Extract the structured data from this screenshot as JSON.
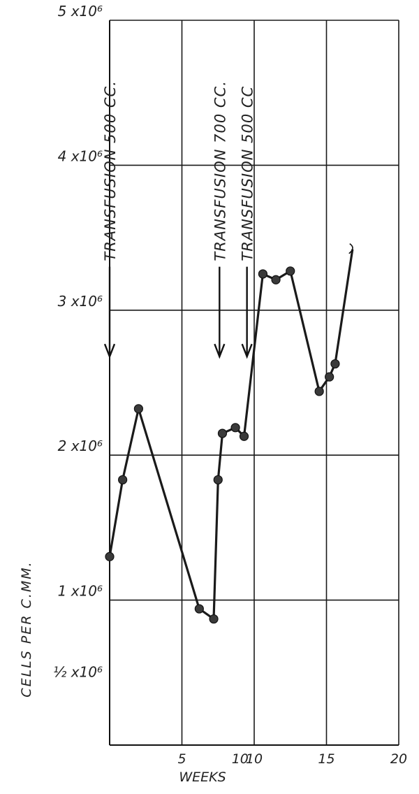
{
  "chart_data": {
    "type": "line",
    "xlabel": "WEEKS",
    "ylabel": "CELLS PER C.MM.",
    "xlim": [
      0,
      20
    ],
    "ylim": [
      0,
      5000000
    ],
    "grid": true,
    "x_ticks": [
      {
        "value": 5,
        "label": "5"
      },
      {
        "value": 10,
        "label": "10"
      },
      {
        "value": 15,
        "label": "15"
      },
      {
        "value": 20,
        "label": "20"
      }
    ],
    "x_label_extra": {
      "value": 9.7,
      "label": "10"
    },
    "y_ticks": [
      {
        "value": 500000,
        "label": "½ x10⁶"
      },
      {
        "value": 1000000,
        "label": "1 x10⁶"
      },
      {
        "value": 2000000,
        "label": "2 x10⁶"
      },
      {
        "value": 3000000,
        "label": "3 x10⁶"
      },
      {
        "value": 4000000,
        "label": "4 x10⁶"
      },
      {
        "value": 5000000,
        "label": "5 x10⁶"
      }
    ],
    "series": [
      {
        "points": [
          {
            "x": 0,
            "y": 1300000
          },
          {
            "x": 0.9,
            "y": 1830000
          },
          {
            "x": 2.0,
            "y": 2320000
          },
          {
            "x": 6.2,
            "y": 940000
          },
          {
            "x": 7.2,
            "y": 870000
          },
          {
            "x": 7.5,
            "y": 1830000
          },
          {
            "x": 7.8,
            "y": 2150000
          },
          {
            "x": 8.7,
            "y": 2190000
          },
          {
            "x": 9.3,
            "y": 2130000
          },
          {
            "x": 10.6,
            "y": 3250000
          },
          {
            "x": 11.5,
            "y": 3210000
          },
          {
            "x": 12.5,
            "y": 3270000
          },
          {
            "x": 14.5,
            "y": 2440000
          },
          {
            "x": 15.2,
            "y": 2540000
          },
          {
            "x": 15.6,
            "y": 2630000
          },
          {
            "x": 16.8,
            "y": 3420000
          }
        ],
        "marked_points": 15
      }
    ],
    "annotations": [
      {
        "text": "TRANSFUSION 500 CC.",
        "x": 0,
        "arrow_from": 3300000,
        "arrow_to": 2680000
      },
      {
        "text": "TRANSFUSION 700 CC.",
        "x": 7.6,
        "arrow_from": 3300000,
        "arrow_to": 2680000
      },
      {
        "text": "TRANSFUSION 500 CC",
        "x": 9.5,
        "arrow_from": 3300000,
        "arrow_to": 2680000
      }
    ]
  }
}
